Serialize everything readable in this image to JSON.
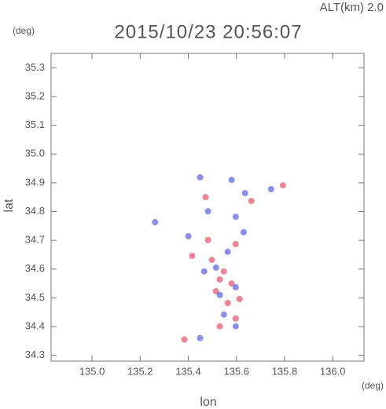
{
  "chart_data": {
    "type": "scatter",
    "title": "2015/10/23 20:56:07",
    "altitude_label": "ALT(km)  2.0",
    "y_unit": "(deg)",
    "x_unit": "(deg)",
    "xlabel": "lon",
    "ylabel": "lat",
    "xlim": [
      134.83,
      136.13
    ],
    "ylim": [
      34.28,
      35.35
    ],
    "xticks": [
      {
        "value": 135,
        "label": "135.0"
      },
      135.2,
      135.4,
      135.6,
      135.8,
      {
        "value": 136,
        "label": "136.0"
      }
    ],
    "yticks": [
      34.3,
      34.4,
      34.5,
      34.6,
      34.7,
      34.8,
      34.9,
      {
        "value": 35,
        "label": "35.0"
      },
      35.1,
      35.2,
      35.3
    ],
    "series": [
      {
        "color": "#e8506a",
        "x": [
          135.498,
          135.548,
          135.515,
          135.564,
          135.597,
          135.482,
          135.531,
          135.58,
          135.416,
          135.597,
          135.793,
          135.662,
          135.472,
          135.531,
          135.384,
          135.613
        ],
        "y": [
          34.632,
          34.592,
          34.523,
          34.482,
          34.687,
          34.701,
          34.564,
          34.55,
          34.646,
          34.428,
          34.891,
          34.837,
          34.85,
          34.401,
          34.355,
          34.496
        ]
      },
      {
        "color": "#5a5ee8",
        "x": [
          135.515,
          135.564,
          135.466,
          135.597,
          135.548,
          135.597,
          135.531,
          135.744,
          135.597,
          135.63,
          135.449,
          135.262,
          135.449,
          135.58,
          135.4,
          135.636,
          135.482
        ],
        "y": [
          34.605,
          34.66,
          34.592,
          34.537,
          34.442,
          34.401,
          34.51,
          34.878,
          34.782,
          34.728,
          34.36,
          34.763,
          34.919,
          34.91,
          34.714,
          34.864,
          34.801
        ]
      }
    ]
  }
}
